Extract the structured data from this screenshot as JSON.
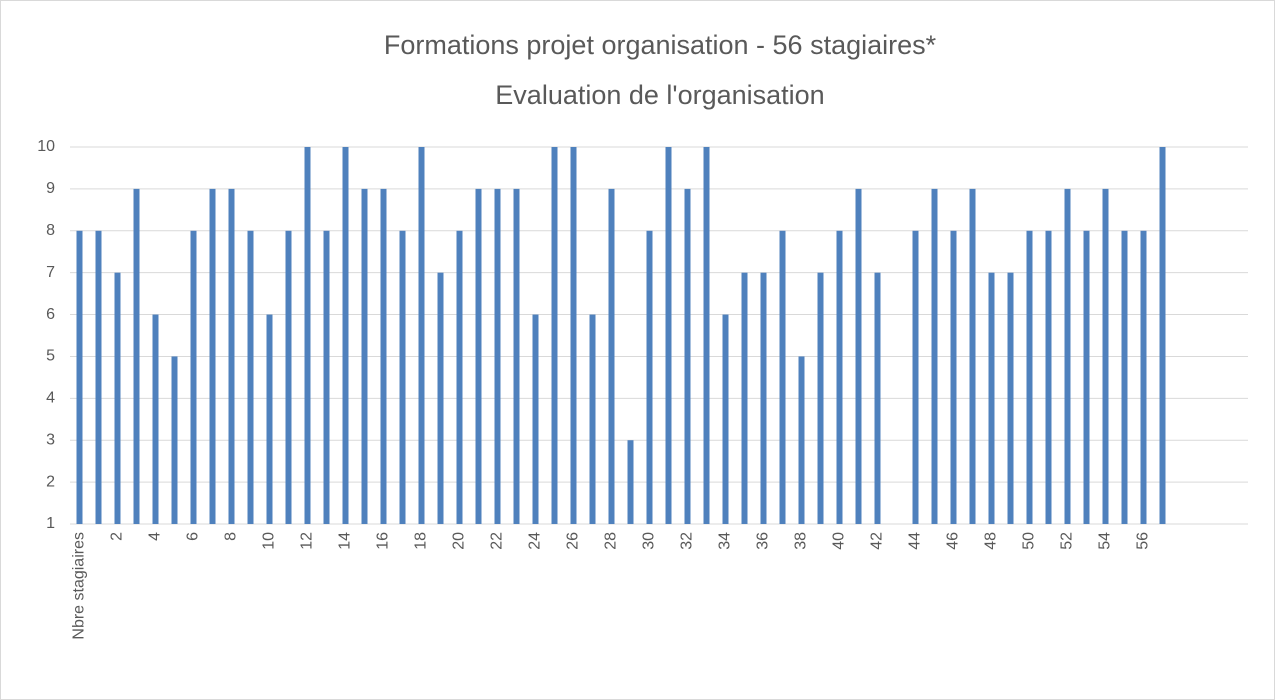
{
  "chart_data": {
    "type": "bar",
    "title": "Formations projet organisation - 56 stagiaires*",
    "subtitle": "Evaluation de l'organisation",
    "categories": [
      "Nbre stagiaires",
      null,
      "2",
      null,
      "4",
      null,
      "6",
      null,
      "8",
      null,
      "10",
      null,
      "12",
      null,
      "14",
      null,
      "16",
      null,
      "18",
      null,
      "20",
      null,
      "22",
      null,
      "24",
      null,
      "26",
      null,
      "28",
      null,
      "30",
      null,
      "32",
      null,
      "34",
      null,
      "36",
      null,
      "38",
      null,
      "40",
      null,
      "42",
      null,
      "44",
      null,
      "46",
      null,
      "48",
      null,
      "50",
      null,
      "52",
      null,
      "54",
      null,
      "56",
      null,
      null,
      null,
      null,
      null
    ],
    "values": [
      8,
      8,
      7,
      9,
      6,
      5,
      8,
      9,
      9,
      8,
      6,
      8,
      10,
      8,
      10,
      9,
      9,
      8,
      10,
      7,
      8,
      9,
      9,
      9,
      6,
      10,
      10,
      6,
      9,
      3,
      8,
      10,
      9,
      10,
      6,
      7,
      7,
      8,
      5,
      7,
      8,
      9,
      7,
      null,
      8,
      9,
      8,
      9,
      7,
      7,
      8,
      8,
      9,
      8,
      9,
      8,
      8,
      10,
      null,
      null,
      null,
      null
    ],
    "color": "#4f81bd",
    "ylim": [
      1,
      10
    ],
    "yticks": [
      1,
      2,
      3,
      4,
      5,
      6,
      7,
      8,
      9,
      10
    ],
    "grid": true
  }
}
